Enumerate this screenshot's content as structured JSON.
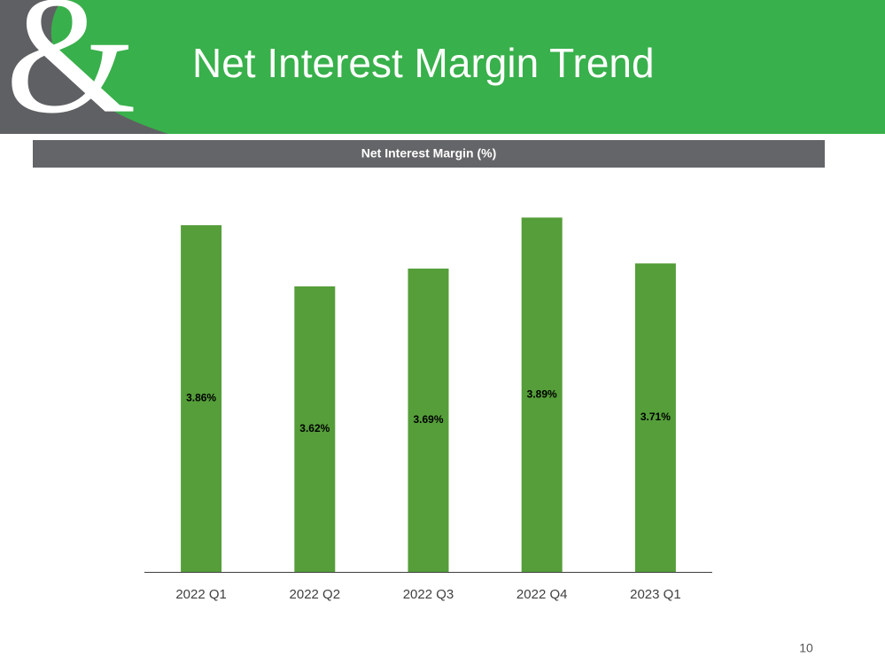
{
  "header": {
    "logo": "&",
    "title": "Net Interest Margin Trend"
  },
  "chart_data": {
    "type": "bar",
    "title": "Net Interest Margin (%)",
    "categories": [
      "2022 Q1",
      "2022 Q2",
      "2022 Q3",
      "2022 Q4",
      "2023 Q1"
    ],
    "values": [
      3.86,
      3.62,
      3.69,
      3.89,
      3.71
    ],
    "value_labels": [
      "3.86%",
      "3.62%",
      "3.69%",
      "3.89%",
      "3.71%"
    ],
    "color": "#559e3a",
    "ylim": [
      2.5,
      3.9
    ]
  },
  "page_number": 10
}
